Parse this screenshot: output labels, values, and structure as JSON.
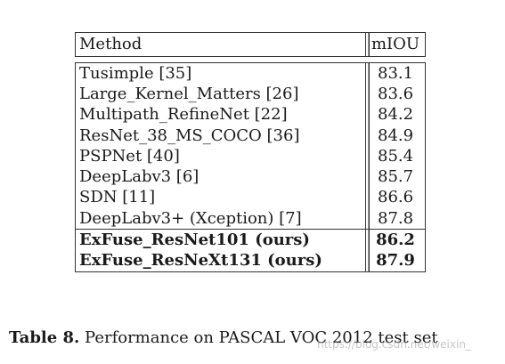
{
  "table": {
    "header": {
      "method": "Method",
      "miou": "mIOU"
    },
    "rows": [
      {
        "method": "Tusimple [35]",
        "miou": "83.1"
      },
      {
        "method": "Large_Kernel_Matters [26]",
        "miou": "83.6"
      },
      {
        "method": "Multipath_RefineNet [22]",
        "miou": "84.2"
      },
      {
        "method": "ResNet_38_MS_COCO [36]",
        "miou": "84.9"
      },
      {
        "method": "PSPNet [40]",
        "miou": "85.4"
      },
      {
        "method": "DeepLabv3 [6]",
        "miou": "85.7"
      },
      {
        "method": "SDN [11]",
        "miou": "86.6"
      },
      {
        "method": "DeepLabv3+ (Xception) [7]",
        "miou": "87.8"
      }
    ],
    "ours": [
      {
        "method": "ExFuse_ResNet101 (ours)",
        "miou": "86.2"
      },
      {
        "method": "ExFuse_ResNeXt131 (ours)",
        "miou": "87.9"
      }
    ]
  },
  "caption": {
    "label": "Table 8.",
    "text": "Performance on PASCAL VOC 2012 test set"
  },
  "watermark": "https://blog.csdn.net/weixin_"
}
